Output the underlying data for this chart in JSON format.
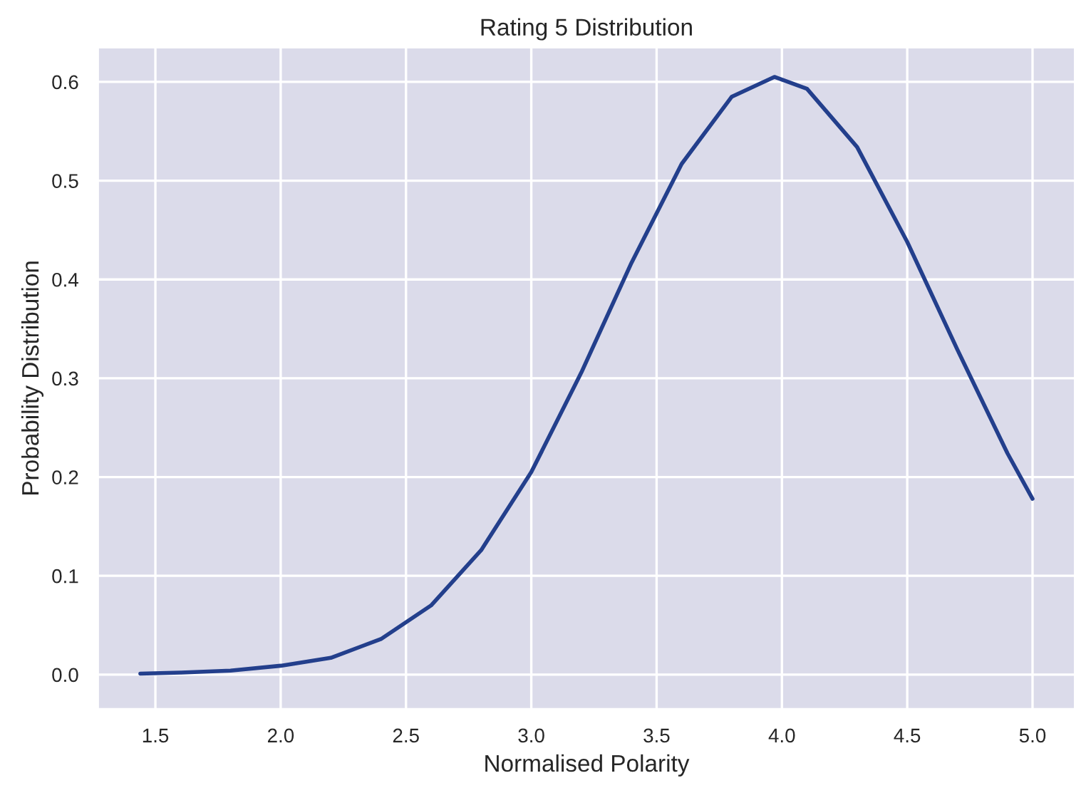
{
  "chart_data": {
    "type": "line",
    "title": "Rating 5 Distribution",
    "xlabel": "Normalised Polarity",
    "ylabel": "Probability Distribution",
    "series": [
      {
        "color": "#233f8c",
        "x": [
          1.44,
          1.6,
          1.8,
          2.0,
          2.2,
          2.4,
          2.6,
          2.8,
          3.0,
          3.2,
          3.4,
          3.6,
          3.8,
          3.97,
          4.1,
          4.3,
          4.5,
          4.7,
          4.9,
          5.0
        ],
        "values": [
          0.001,
          0.002,
          0.004,
          0.009,
          0.017,
          0.036,
          0.07,
          0.126,
          0.205,
          0.306,
          0.417,
          0.517,
          0.585,
          0.605,
          0.593,
          0.534,
          0.438,
          0.329,
          0.224,
          0.178
        ]
      }
    ],
    "xlim": [
      1.27,
      5.17
    ],
    "ylim": [
      -0.035,
      0.635
    ],
    "xticks": [
      1.5,
      {
        "value": 2,
        "label": "2.0"
      },
      2.5,
      {
        "value": 3,
        "label": "3.0"
      },
      3.5,
      {
        "value": 4,
        "label": "4.0"
      },
      4.5,
      {
        "value": 5,
        "label": "5.0"
      }
    ],
    "yticks": [
      {
        "value": 0,
        "label": "0.0"
      },
      0.1,
      0.2,
      0.3,
      0.4,
      0.5,
      0.6
    ],
    "grid": true,
    "legend": false,
    "marker": "none",
    "line_style": "solid"
  }
}
